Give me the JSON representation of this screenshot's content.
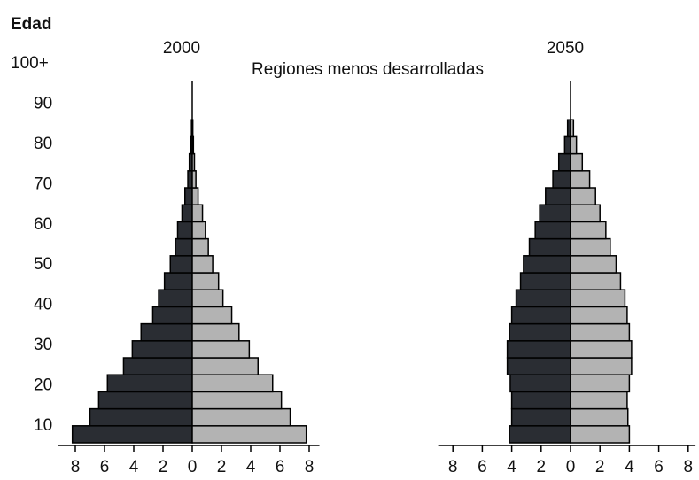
{
  "chart_data": [
    {
      "type": "pyramid",
      "title": "2000",
      "subtitle": "Regiones menos desarrolladas",
      "ylabel": "Edad",
      "ylim": [
        10,
        100
      ],
      "yticks": [
        10,
        20,
        30,
        40,
        50,
        60,
        70,
        80,
        90,
        {
          "value": 100,
          "label": "100+"
        }
      ],
      "categories": [
        null,
        null,
        null,
        null,
        null,
        null,
        null,
        null,
        null,
        null,
        null,
        null,
        null,
        null,
        null,
        null,
        null,
        null,
        null
      ],
      "series": [
        {
          "color": "#2a2d33",
          "side": "left",
          "values": [
            8.2,
            7.0,
            6.4,
            5.8,
            4.7,
            4.1,
            3.5,
            2.7,
            2.3,
            1.9,
            1.5,
            1.15,
            1.0,
            0.7,
            0.5,
            0.3,
            0.2,
            0.1,
            0.05
          ]
        },
        {
          "color": "#b3b3b3",
          "side": "right",
          "values": [
            7.8,
            6.7,
            6.1,
            5.5,
            4.5,
            3.9,
            3.2,
            2.7,
            2.1,
            1.8,
            1.4,
            1.1,
            0.9,
            0.7,
            0.4,
            0.25,
            0.15,
            0.08,
            0.04
          ]
        }
      ],
      "xlim": [
        -9.2,
        8.7
      ],
      "xticks": [
        {
          "value": -8,
          "label": "8"
        },
        {
          "value": -6,
          "label": "6"
        },
        {
          "value": -4,
          "label": "4"
        },
        {
          "value": -2,
          "label": "2"
        },
        0,
        2,
        4,
        6,
        8
      ]
    },
    {
      "type": "pyramid",
      "title": "2050",
      "categories": [
        null,
        null,
        null,
        null,
        null,
        null,
        null,
        null,
        null,
        null,
        null,
        null,
        null,
        null,
        null,
        null,
        null,
        null,
        null
      ],
      "series": [
        {
          "color": "#2a2d33",
          "side": "left",
          "values": [
            4.15,
            4.0,
            4.0,
            4.1,
            4.3,
            4.3,
            4.15,
            4.0,
            3.7,
            3.4,
            3.2,
            2.8,
            2.4,
            2.1,
            1.7,
            1.2,
            0.8,
            0.4,
            0.2
          ]
        },
        {
          "color": "#b3b3b3",
          "side": "right",
          "values": [
            4.0,
            3.9,
            3.85,
            4.0,
            4.15,
            4.15,
            4.0,
            3.85,
            3.7,
            3.4,
            3.1,
            2.7,
            2.4,
            2.0,
            1.7,
            1.3,
            0.8,
            0.4,
            0.2
          ]
        }
      ],
      "xlim": [
        -9.0,
        8.5
      ],
      "xticks": [
        {
          "value": -8,
          "label": "8"
        },
        {
          "value": -6,
          "label": "6"
        },
        {
          "value": -4,
          "label": "4"
        },
        {
          "value": -2,
          "label": "2"
        },
        0,
        2,
        4,
        6,
        8
      ]
    }
  ]
}
